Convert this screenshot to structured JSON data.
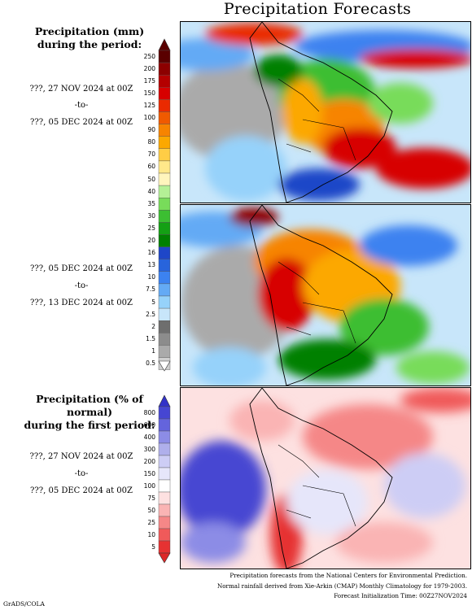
{
  "title": "Precipitation Forecasts",
  "legend_amount": {
    "header_line1": "Precipitation (mm)",
    "header_line2": "during the period:",
    "labels": [
      "250",
      "200",
      "175",
      "150",
      "125",
      "100",
      "90",
      "80",
      "70",
      "60",
      "50",
      "40",
      "35",
      "30",
      "25",
      "20",
      "16",
      "13",
      "10",
      "7.5",
      "5",
      "2.5",
      "2",
      "1.5",
      "1",
      "0.5"
    ],
    "colors": [
      "#5a0000",
      "#8c0000",
      "#b40000",
      "#d70000",
      "#ea2a00",
      "#f05a00",
      "#f78400",
      "#fca800",
      "#ffcd45",
      "#ffe88a",
      "#fff5bd",
      "#b4f096",
      "#78dc5a",
      "#3cbe32",
      "#14a014",
      "#008000",
      "#1e46c8",
      "#2864dc",
      "#3c82f0",
      "#64aaf5",
      "#96d2fa",
      "#c8e6fa",
      "#6e6e6e",
      "#8c8c8c",
      "#aaaaaa",
      "#cfcfcf"
    ],
    "top_cap_color": "#5a0000",
    "bottom_cap_color": "#ffffff"
  },
  "legend_percent": {
    "header_line1": "Precipitation (% of normal)",
    "header_line2": "during the first period:",
    "labels": [
      "800",
      "600",
      "400",
      "300",
      "200",
      "150",
      "100",
      "75",
      "50",
      "25",
      "10",
      "5"
    ],
    "colors": [
      "#4646d2",
      "#6464dc",
      "#8c8ce6",
      "#afafeb",
      "#cdcdf5",
      "#e6e6fa",
      "#ffffff",
      "#fde1e1",
      "#fab4b4",
      "#f58787",
      "#f05a5a",
      "#e63232"
    ],
    "top_cap_color": "#3232c8",
    "bottom_cap_color": "#dc2828"
  },
  "periods": [
    {
      "start": "???, 27 NOV 2024 at 00Z",
      "to": "-to-",
      "end": "???, 05 DEC 2024 at 00Z"
    },
    {
      "start": "???, 05 DEC 2024 at 00Z",
      "to": "-to-",
      "end": "???, 13 DEC 2024 at 00Z"
    },
    {
      "start": "???, 27 NOV 2024 at 00Z",
      "to": "-to-",
      "end": "???, 05 DEC 2024 at 00Z"
    }
  ],
  "credits": {
    "line1": "Precipitation forecasts from the National Centers for Environmental Prediction.",
    "line2": "Normal rainfall derived from Xie-Arkin (CMAP) Monthly Climatology for 1979-2003.",
    "line3": "Forecast Initialization Time: 00Z27NOV2024"
  },
  "footer": "GrADS/COLA"
}
